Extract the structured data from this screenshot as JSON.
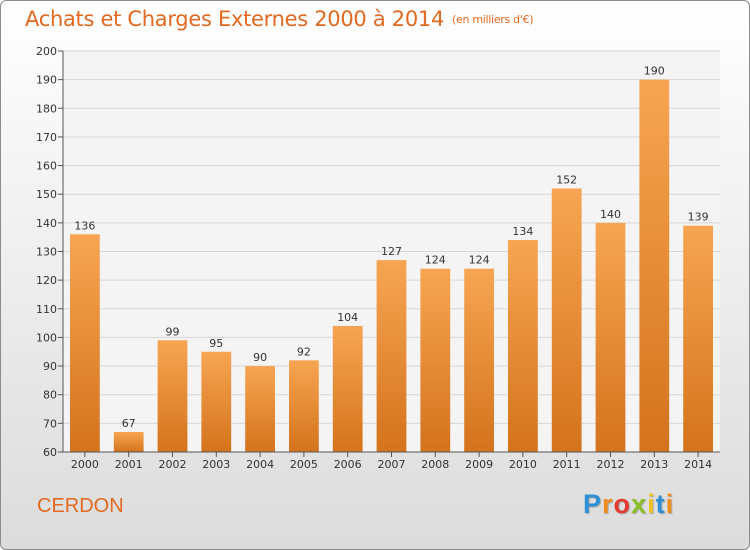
{
  "title": "Achats et Charges Externes 2000 à 2014",
  "subtitle": "(en milliers d'€)",
  "commune": "CERDON",
  "logo": {
    "p": "P",
    "r": "r",
    "o": "o",
    "x": "x",
    "i1": "i",
    "t": "t",
    "i2": "i"
  },
  "colors": {
    "accent": "#e2691f",
    "bar_light": "#f7a552",
    "bar_dark": "#d4731c"
  },
  "chart_data": {
    "type": "bar",
    "categories": [
      "2000",
      "2001",
      "2002",
      "2003",
      "2004",
      "2005",
      "2006",
      "2007",
      "2008",
      "2009",
      "2010",
      "2011",
      "2012",
      "2013",
      "2014"
    ],
    "values": [
      136,
      67,
      99,
      95,
      90,
      92,
      104,
      127,
      124,
      124,
      134,
      152,
      140,
      190,
      139
    ],
    "ylim": [
      60,
      200
    ],
    "yticks": [
      60,
      70,
      80,
      90,
      100,
      110,
      120,
      130,
      140,
      150,
      160,
      170,
      180,
      190,
      200
    ],
    "grid": true,
    "data_labels": true
  }
}
